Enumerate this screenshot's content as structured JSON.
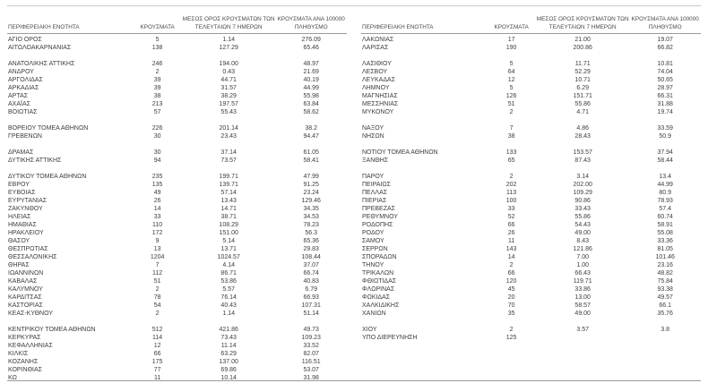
{
  "table": {
    "headers": {
      "region": "ΠΕΡΙΦΕΡΕΙΑΚΗ ΕΝΟΤΗΤΑ",
      "cases": "ΚΡΟΥΣΜΑΤΑ",
      "avg7": "ΜΕΣΟΣ ΟΡΟΣ ΚΡΟΥΣΜΑΤΩΝ ΤΩΝ ΤΕΛΕΥΤΑΙΩΝ 7 ΗΜΕΡΩΝ",
      "per100k": "ΚΡΟΥΣΜΑΤΑ ΑΝΑ 100000 ΠΛΗΘΥΣΜΟ"
    },
    "left_rows": [
      {
        "name": "ΑΓΙΟ ΟΡΟΣ",
        "cases": "5",
        "avg7": "1.14",
        "per100k": "276.09"
      },
      {
        "name": "ΑΙΤΩΛΟΑΚΑΡΝΑΝΙΑΣ",
        "cases": "138",
        "avg7": "127.29",
        "per100k": "65.46"
      },
      null,
      {
        "name": "ΑΝΑΤΟΛΙΚΗΣ ΑΤΤΙΚΗΣ",
        "cases": "246",
        "avg7": "194.00",
        "per100k": "48.97"
      },
      {
        "name": "ΑΝΔΡΟΥ",
        "cases": "2",
        "avg7": "0.43",
        "per100k": "21.69"
      },
      {
        "name": "ΑΡΓΟΛΙΔΑΣ",
        "cases": "39",
        "avg7": "44.71",
        "per100k": "40.19"
      },
      {
        "name": "ΑΡΚΑΔΙΑΣ",
        "cases": "39",
        "avg7": "31.57",
        "per100k": "44.99"
      },
      {
        "name": "ΑΡΤΑΣ",
        "cases": "38",
        "avg7": "38.29",
        "per100k": "55.98"
      },
      {
        "name": "ΑΧΑΪΑΣ",
        "cases": "213",
        "avg7": "197.57",
        "per100k": "63.84"
      },
      {
        "name": "ΒΟΙΩΤΙΑΣ",
        "cases": "57",
        "avg7": "55.43",
        "per100k": "58.62"
      },
      null,
      {
        "name": "ΒΟΡΕΙΟΥ ΤΟΜΕΑ ΑΘΗΝΩΝ",
        "cases": "226",
        "avg7": "201.14",
        "per100k": "38.2"
      },
      {
        "name": "ΓΡΕΒΕΝΩΝ",
        "cases": "30",
        "avg7": "23.43",
        "per100k": "94.47"
      },
      null,
      {
        "name": "ΔΡΑΜΑΣ",
        "cases": "30",
        "avg7": "37.14",
        "per100k": "61.05"
      },
      {
        "name": "ΔΥΤΙΚΗΣ ΑΤΤΙΚΗΣ",
        "cases": "94",
        "avg7": "73.57",
        "per100k": "58.41"
      },
      null,
      {
        "name": "ΔΥΤΙΚΟΥ ΤΟΜΕΑ ΑΘΗΝΩΝ",
        "cases": "235",
        "avg7": "199.71",
        "per100k": "47.99"
      },
      {
        "name": "ΕΒΡΟΥ",
        "cases": "135",
        "avg7": "139.71",
        "per100k": "91.25"
      },
      {
        "name": "ΕΥΒΟΙΑΣ",
        "cases": "49",
        "avg7": "57.14",
        "per100k": "23.24"
      },
      {
        "name": "ΕΥΡΥΤΑΝΙΑΣ",
        "cases": "26",
        "avg7": "13.43",
        "per100k": "129.46"
      },
      {
        "name": "ΖΑΚΥΝΘΟΥ",
        "cases": "14",
        "avg7": "14.71",
        "per100k": "34.35"
      },
      {
        "name": "ΗΛΕΙΑΣ",
        "cases": "33",
        "avg7": "38.71",
        "per100k": "34.53"
      },
      {
        "name": "ΗΜΑΘΙΑΣ",
        "cases": "110",
        "avg7": "108.29",
        "per100k": "78.23"
      },
      {
        "name": "ΗΡΑΚΛΕΙΟΥ",
        "cases": "172",
        "avg7": "151.00",
        "per100k": "56.3"
      },
      {
        "name": "ΘΑΣΟΥ",
        "cases": "9",
        "avg7": "5.14",
        "per100k": "65.36"
      },
      {
        "name": "ΘΕΣΠΡΩΤΙΑΣ",
        "cases": "13",
        "avg7": "13.71",
        "per100k": "29.83"
      },
      {
        "name": "ΘΕΣΣΑΛΟΝΙΚΗΣ",
        "cases": "1204",
        "avg7": "1024.57",
        "per100k": "108.44"
      },
      {
        "name": "ΘΗΡΑΣ",
        "cases": "7",
        "avg7": "4.14",
        "per100k": "37.07"
      },
      {
        "name": "ΙΩΑΝΝΙΝΩΝ",
        "cases": "112",
        "avg7": "86.71",
        "per100k": "66.74"
      },
      {
        "name": "ΚΑΒΑΛΑΣ",
        "cases": "51",
        "avg7": "53.86",
        "per100k": "40.83"
      },
      {
        "name": "ΚΑΛΥΜΝΟΥ",
        "cases": "2",
        "avg7": "5.57",
        "per100k": "6.79"
      },
      {
        "name": "ΚΑΡΔΙΤΣΑΣ",
        "cases": "78",
        "avg7": "76.14",
        "per100k": "66.93"
      },
      {
        "name": "ΚΑΣΤΟΡΙΑΣ",
        "cases": "54",
        "avg7": "40.43",
        "per100k": "107.31"
      },
      {
        "name": "ΚΕΑΣ-ΚΥΘΝΟΥ",
        "cases": "2",
        "avg7": "1.14",
        "per100k": "51.14"
      },
      null,
      {
        "name": "ΚΕΝΤΡΙΚΟΥ ΤΟΜΕΑ ΑΘΗΝΩΝ",
        "cases": "512",
        "avg7": "421.86",
        "per100k": "49.73"
      },
      {
        "name": "ΚΕΡΚΥΡΑΣ",
        "cases": "114",
        "avg7": "73.43",
        "per100k": "109.23"
      },
      {
        "name": "ΚΕΦΑΛΛΗΝΙΑΣ",
        "cases": "12",
        "avg7": "11.14",
        "per100k": "33.52"
      },
      {
        "name": "ΚΙΛΚΙΣ",
        "cases": "66",
        "avg7": "63.29",
        "per100k": "82.07"
      },
      {
        "name": "ΚΟΖΑΝΗΣ",
        "cases": "175",
        "avg7": "137.00",
        "per100k": "116.51"
      },
      {
        "name": "ΚΟΡΙΝΘΙΑΣ",
        "cases": "77",
        "avg7": "69.86",
        "per100k": "53.07"
      },
      {
        "name": "ΚΩ",
        "cases": "11",
        "avg7": "10.14",
        "per100k": "31.98"
      }
    ],
    "right_rows": [
      {
        "name": "ΛΑΚΩΝΙΑΣ",
        "cases": "17",
        "avg7": "21.00",
        "per100k": "19.07"
      },
      {
        "name": "ΛΑΡΙΣΑΣ",
        "cases": "190",
        "avg7": "200.86",
        "per100k": "66.82"
      },
      null,
      {
        "name": "ΛΑΣΙΘΙΟΥ",
        "cases": "5",
        "avg7": "11.71",
        "per100k": "10.81"
      },
      {
        "name": "ΛΕΣΒΟΥ",
        "cases": "64",
        "avg7": "52.29",
        "per100k": "74.04"
      },
      {
        "name": "ΛΕΥΚΑΔΑΣ",
        "cases": "12",
        "avg7": "10.71",
        "per100k": "50.65"
      },
      {
        "name": "ΛΗΜΝΟΥ",
        "cases": "5",
        "avg7": "6.29",
        "per100k": "28.97"
      },
      {
        "name": "ΜΑΓΝΗΣΙΑΣ",
        "cases": "126",
        "avg7": "151.71",
        "per100k": "66.31"
      },
      {
        "name": "ΜΕΣΣΗΝΙΑΣ",
        "cases": "51",
        "avg7": "55.86",
        "per100k": "31.88"
      },
      {
        "name": "ΜΥΚΟΝΟΥ",
        "cases": "2",
        "avg7": "4.71",
        "per100k": "19.74"
      },
      null,
      {
        "name": "ΝΑΞΟΥ",
        "cases": "7",
        "avg7": "4.86",
        "per100k": "33.59"
      },
      {
        "name": "ΝΗΣΩΝ",
        "cases": "38",
        "avg7": "28.43",
        "per100k": "50.9"
      },
      null,
      {
        "name": "ΝΟΤΙΟΥ ΤΟΜΕΑ ΑΘΗΝΩΝ",
        "cases": "133",
        "avg7": "153.57",
        "per100k": "37.94"
      },
      {
        "name": "ΞΑΝΘΗΣ",
        "cases": "65",
        "avg7": "87.43",
        "per100k": "58.44"
      },
      null,
      {
        "name": "ΠΑΡΟΥ",
        "cases": "2",
        "avg7": "3.14",
        "per100k": "13.4"
      },
      {
        "name": "ΠΕΙΡΑΙΩΣ",
        "cases": "202",
        "avg7": "202.00",
        "per100k": "44.99"
      },
      {
        "name": "ΠΕΛΛΑΣ",
        "cases": "113",
        "avg7": "109.29",
        "per100k": "80.9"
      },
      {
        "name": "ΠΙΕΡΙΑΣ",
        "cases": "100",
        "avg7": "90.86",
        "per100k": "78.93"
      },
      {
        "name": "ΠΡΕΒΕΖΑΣ",
        "cases": "33",
        "avg7": "33.43",
        "per100k": "57.4"
      },
      {
        "name": "ΡΕΘΥΜΝΟΥ",
        "cases": "52",
        "avg7": "55.86",
        "per100k": "60.74"
      },
      {
        "name": "ΡΟΔΟΠΗΣ",
        "cases": "66",
        "avg7": "54.43",
        "per100k": "58.91"
      },
      {
        "name": "ΡΟΔΟΥ",
        "cases": "26",
        "avg7": "49.00",
        "per100k": "55.08"
      },
      {
        "name": "ΣΑΜΟΥ",
        "cases": "11",
        "avg7": "8.43",
        "per100k": "33.36"
      },
      {
        "name": "ΣΕΡΡΩΝ",
        "cases": "143",
        "avg7": "121.86",
        "per100k": "81.05"
      },
      {
        "name": "ΣΠΟΡΑΔΩΝ",
        "cases": "14",
        "avg7": "7.00",
        "per100k": "101.46"
      },
      {
        "name": "ΤΗΝΟΥ",
        "cases": "2",
        "avg7": "1.00",
        "per100k": "23.16"
      },
      {
        "name": "ΤΡΙΚΑΛΩΝ",
        "cases": "66",
        "avg7": "66.43",
        "per100k": "48.82"
      },
      {
        "name": "ΦΘΙΩΤΙΔΑΣ",
        "cases": "120",
        "avg7": "119.71",
        "per100k": "75.84"
      },
      {
        "name": "ΦΛΩΡΙΝΑΣ",
        "cases": "45",
        "avg7": "33.86",
        "per100k": "93.38"
      },
      {
        "name": "ΦΩΚΙΔΑΣ",
        "cases": "20",
        "avg7": "13.00",
        "per100k": "49.57"
      },
      {
        "name": "ΧΑΛΚΙΔΙΚΗΣ",
        "cases": "70",
        "avg7": "58.57",
        "per100k": "66.1"
      },
      {
        "name": "ΧΑΝΙΩΝ",
        "cases": "35",
        "avg7": "49.00",
        "per100k": "35.76"
      },
      null,
      {
        "name": "ΧΙΟΥ",
        "cases": "2",
        "avg7": "3.57",
        "per100k": "3.8"
      },
      {
        "name": "ΥΠΟ ΔΙΕΡΕΥΝΗΣΗ",
        "cases": "125",
        "avg7": "",
        "per100k": ""
      }
    ]
  }
}
